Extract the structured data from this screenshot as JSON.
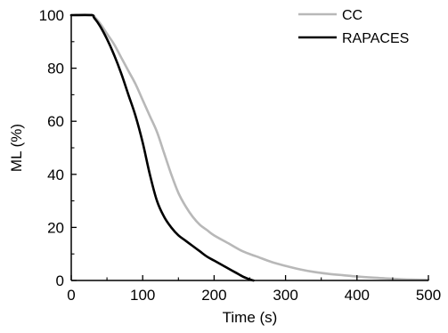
{
  "chart_data": {
    "type": "line",
    "title": "",
    "xlabel": "Time (s)",
    "ylabel": "ML (%)",
    "xlim": [
      0,
      500
    ],
    "ylim": [
      0,
      100
    ],
    "xticks": [
      0,
      100,
      200,
      300,
      400,
      500
    ],
    "yticks": [
      0,
      20,
      40,
      60,
      80,
      100
    ],
    "grid": false,
    "legend_position": "top-right",
    "series": [
      {
        "name": "CC",
        "color": "#b8b8b8",
        "points": [
          [
            0,
            100
          ],
          [
            25,
            100
          ],
          [
            30,
            100
          ],
          [
            40,
            97
          ],
          [
            50,
            93
          ],
          [
            60,
            89
          ],
          [
            70,
            84
          ],
          [
            80,
            79
          ],
          [
            90,
            74
          ],
          [
            100,
            68
          ],
          [
            110,
            62
          ],
          [
            120,
            56
          ],
          [
            130,
            48
          ],
          [
            140,
            40
          ],
          [
            150,
            33
          ],
          [
            160,
            28
          ],
          [
            170,
            24
          ],
          [
            180,
            21
          ],
          [
            190,
            19
          ],
          [
            200,
            17
          ],
          [
            220,
            14
          ],
          [
            240,
            11
          ],
          [
            260,
            9
          ],
          [
            280,
            7
          ],
          [
            300,
            5.5
          ],
          [
            320,
            4.2
          ],
          [
            340,
            3.2
          ],
          [
            360,
            2.5
          ],
          [
            380,
            2
          ],
          [
            400,
            1.5
          ],
          [
            420,
            1.1
          ],
          [
            440,
            0.8
          ],
          [
            460,
            0.5
          ],
          [
            480,
            0.3
          ],
          [
            500,
            0.2
          ]
        ]
      },
      {
        "name": "RAPACES",
        "color": "#000000",
        "points": [
          [
            0,
            100
          ],
          [
            28,
            100
          ],
          [
            32,
            99
          ],
          [
            40,
            96
          ],
          [
            50,
            91
          ],
          [
            60,
            85
          ],
          [
            70,
            78
          ],
          [
            80,
            70
          ],
          [
            90,
            62
          ],
          [
            100,
            52
          ],
          [
            110,
            40
          ],
          [
            120,
            30
          ],
          [
            130,
            24
          ],
          [
            140,
            20
          ],
          [
            150,
            17
          ],
          [
            160,
            15
          ],
          [
            170,
            13
          ],
          [
            180,
            11
          ],
          [
            190,
            9
          ],
          [
            200,
            7.5
          ],
          [
            210,
            6
          ],
          [
            220,
            4.5
          ],
          [
            230,
            3
          ],
          [
            240,
            1.5
          ],
          [
            250,
            0.4
          ],
          [
            255,
            0
          ]
        ]
      }
    ]
  }
}
